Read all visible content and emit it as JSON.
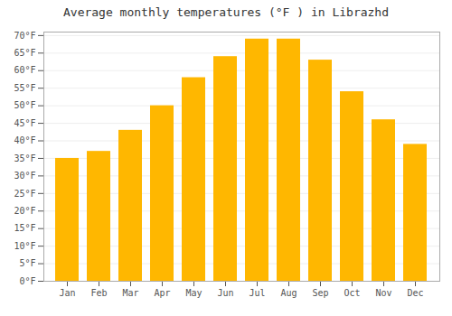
{
  "chart_data": {
    "type": "bar",
    "title": "Average monthly temperatures (°F ) in Librazhd",
    "categories": [
      "Jan",
      "Feb",
      "Mar",
      "Apr",
      "May",
      "Jun",
      "Jul",
      "Aug",
      "Sep",
      "Oct",
      "Nov",
      "Dec"
    ],
    "values": [
      35,
      37,
      43,
      50,
      58,
      64,
      69,
      69,
      63,
      54,
      46,
      39
    ],
    "color": "#FFB700",
    "ylim": [
      0,
      71
    ],
    "yticks": [
      {
        "value": 0,
        "label": "0°F"
      },
      {
        "value": 5,
        "label": "5°F"
      },
      {
        "value": 10,
        "label": "10°F"
      },
      {
        "value": 15,
        "label": "15°F"
      },
      {
        "value": 20,
        "label": "20°F"
      },
      {
        "value": 25,
        "label": "25°F"
      },
      {
        "value": 30,
        "label": "30°F"
      },
      {
        "value": 35,
        "label": "35°F"
      },
      {
        "value": 40,
        "label": "40°F"
      },
      {
        "value": 45,
        "label": "45°F"
      },
      {
        "value": 50,
        "label": "50°F"
      },
      {
        "value": 55,
        "label": "55°F"
      },
      {
        "value": 60,
        "label": "60°F"
      },
      {
        "value": 65,
        "label": "65°F"
      },
      {
        "value": 70,
        "label": "70°F"
      }
    ],
    "grid": true
  }
}
